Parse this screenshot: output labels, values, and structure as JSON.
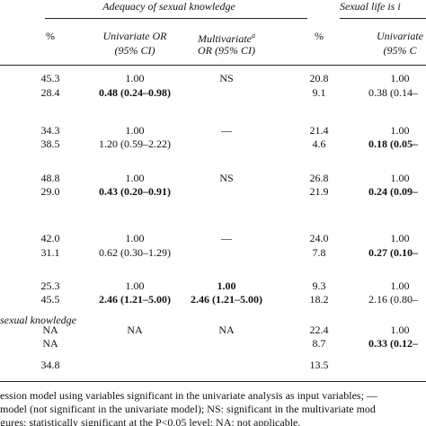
{
  "header": {
    "group1": "Adequacy of sexual knowledge",
    "group2": "Sexual life is i"
  },
  "columns": [
    [
      "%"
    ],
    [
      "Univariate OR",
      "(95% CI)"
    ],
    [
      {
        "text": "Multivariate",
        "sup": "a"
      },
      "OR (95% CI)"
    ],
    [
      "%"
    ],
    [
      "Univariate",
      "(95% C"
    ]
  ],
  "table": {
    "rows": [
      [
        "45.3",
        "1.00",
        "NS",
        "20.8",
        "1.00"
      ],
      [
        "28.4",
        {
          "text": "0.48 (0.24–0.98)",
          "bold": true
        },
        "",
        "9.1",
        "0.38 (0.14–"
      ],
      [
        "34.3",
        "1.00",
        "—",
        "21.4",
        "1.00"
      ],
      [
        "38.5",
        "1.20 (0.59–2.22)",
        "",
        "4.6",
        {
          "text": "0.18 (0.05–",
          "bold": true
        }
      ],
      [
        "48.8",
        "1.00",
        "NS",
        "26.8",
        "1.00"
      ],
      [
        "29.0",
        {
          "text": "0.43 (0.20–0.91)",
          "bold": true
        },
        "",
        "21.9",
        {
          "text": "0.24 (0.09–",
          "bold": true
        }
      ],
      [
        "42.0",
        "1.00",
        "—",
        "24.0",
        "1.00"
      ],
      [
        "31.1",
        "0.62 (0.30–1.29)",
        "",
        "7.8",
        {
          "text": "0.27 (0.10–",
          "bold": true
        }
      ],
      [
        "25.3",
        "1.00",
        {
          "text": "1.00",
          "bold": true
        },
        "9.3",
        "1.00"
      ],
      [
        "45.5",
        {
          "text": "2.46 (1.21–5.00)",
          "bold": true
        },
        {
          "text": "2.46 (1.21–5.00)",
          "bold": true
        },
        "18.2",
        "2.16 (0.80–"
      ],
      [
        "NA",
        "NA",
        "NA",
        "22.4",
        "1.00"
      ],
      [
        "NA",
        "",
        "",
        "8.7",
        {
          "text": "0.33 (0.12–",
          "bold": true
        }
      ],
      [
        "34.8",
        "",
        "",
        "13.5",
        ""
      ]
    ]
  },
  "section_label": "sexual knowledge",
  "footnotes": [
    "ession model using variables significant in the univariate analysis as input variables; —",
    "model (not significant in the univariate model); NS: significant in the multivariate mod",
    "gures: statistically significant at the P<0.05 level; NA: not applicable."
  ]
}
